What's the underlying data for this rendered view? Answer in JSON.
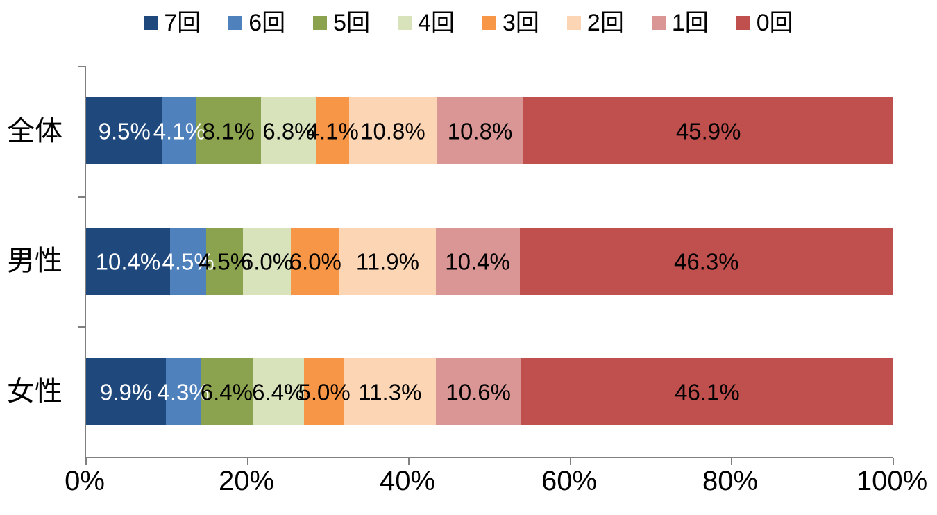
{
  "chart_data": {
    "type": "bar",
    "orientation": "horizontal",
    "stacked": true,
    "title": "",
    "xlabel": "",
    "ylabel": "",
    "xlim": [
      0,
      100
    ],
    "grid": false,
    "legend_position": "top",
    "value_suffix": "%",
    "axis_color": "#808080",
    "categories": [
      "全体",
      "男性",
      "女性"
    ],
    "x_axis": {
      "ticks": [
        "0%",
        "20%",
        "40%",
        "60%",
        "80%",
        "100%"
      ]
    },
    "series": [
      {
        "name": "7回",
        "color": "#1F497D",
        "label_color": "#FFFFFF",
        "values": [
          9.5,
          10.4,
          9.9
        ]
      },
      {
        "name": "6回",
        "color": "#4F81BD",
        "label_color": "#FFFFFF",
        "values": [
          4.1,
          4.5,
          4.3
        ]
      },
      {
        "name": "5回",
        "color": "#8BA24E",
        "label_color": "#000000",
        "values": [
          8.1,
          4.5,
          6.4
        ]
      },
      {
        "name": "4回",
        "color": "#D8E3BC",
        "label_color": "#000000",
        "values": [
          6.8,
          6.0,
          6.4
        ]
      },
      {
        "name": "3回",
        "color": "#F79646",
        "label_color": "#000000",
        "values": [
          4.1,
          6.0,
          5.0
        ]
      },
      {
        "name": "2回",
        "color": "#FCD5B4",
        "label_color": "#000000",
        "values": [
          10.8,
          11.9,
          11.3
        ]
      },
      {
        "name": "1回",
        "color": "#D99694",
        "label_color": "#000000",
        "values": [
          10.8,
          10.4,
          10.6
        ]
      },
      {
        "name": "0回",
        "color": "#C0504D",
        "label_color": "#000000",
        "values": [
          45.9,
          46.3,
          46.1
        ]
      }
    ]
  }
}
